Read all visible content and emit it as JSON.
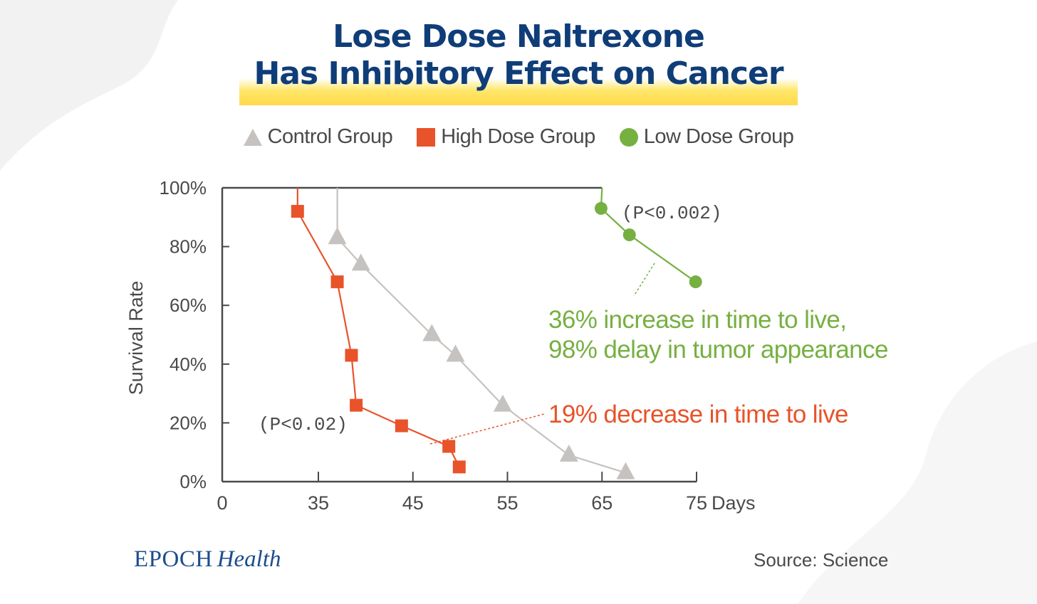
{
  "title": {
    "line1": "Lose Dose Naltrexone",
    "line2": "Has Inhibitory Effect on Cancer"
  },
  "legend": [
    {
      "label": "Control Group",
      "marker": "triangle",
      "color": "#c5c2bf"
    },
    {
      "label": "High Dose Group",
      "marker": "square",
      "color": "#e8532a"
    },
    {
      "label": "Low Dose Group",
      "marker": "circle",
      "color": "#76b041"
    }
  ],
  "footer": {
    "brand": "EPOCH",
    "brand_sub": "Health",
    "source": "Source: Science"
  },
  "chart_data": {
    "type": "line",
    "title": "Lose Dose Naltrexone Has Inhibitory Effect on Cancer",
    "xlabel": "Days",
    "ylabel": "Survival Rate",
    "x_ticks": [
      0,
      35,
      45,
      55,
      65,
      75
    ],
    "x_tick_labels": [
      "0",
      "35",
      "45",
      "55",
      "65",
      "75"
    ],
    "x_axis_break": true,
    "y_ticks": [
      0,
      20,
      40,
      60,
      80,
      100
    ],
    "y_tick_labels": [
      "0%",
      "20%",
      "40%",
      "60%",
      "80%",
      "100%"
    ],
    "ylim": [
      0,
      100
    ],
    "series": [
      {
        "name": "Control Group",
        "marker": "triangle",
        "color": "#c5c2bf",
        "start": [
          37,
          100
        ],
        "points": [
          [
            37,
            83
          ],
          [
            39.5,
            74
          ],
          [
            47,
            50
          ],
          [
            49.5,
            43
          ],
          [
            54.5,
            26
          ],
          [
            61.5,
            9
          ],
          [
            67.5,
            3
          ]
        ]
      },
      {
        "name": "High Dose Group",
        "marker": "square",
        "color": "#e8532a",
        "start": [
          32.8,
          100
        ],
        "points": [
          [
            32.8,
            92
          ],
          [
            37,
            68
          ],
          [
            38.5,
            43
          ],
          [
            39,
            26
          ],
          [
            43.8,
            19
          ],
          [
            48.8,
            12
          ],
          [
            49.9,
            5
          ]
        ]
      },
      {
        "name": "Low Dose Group",
        "marker": "circle",
        "color": "#76b041",
        "start": [
          65,
          100
        ],
        "points": [
          [
            64.9,
            93
          ],
          [
            67.9,
            84
          ],
          [
            74.9,
            68
          ]
        ]
      }
    ],
    "annotations": [
      {
        "text": "(P<0.002)",
        "color": "#4a4a4a"
      },
      {
        "text": "(P<0.02)",
        "color": "#4a4a4a"
      },
      {
        "text": "36% increase in time to live,",
        "color": "#76b041"
      },
      {
        "text": "98% delay in tumor appearance",
        "color": "#76b041"
      },
      {
        "text": "19% decrease in time to live",
        "color": "#e8532a"
      }
    ]
  }
}
